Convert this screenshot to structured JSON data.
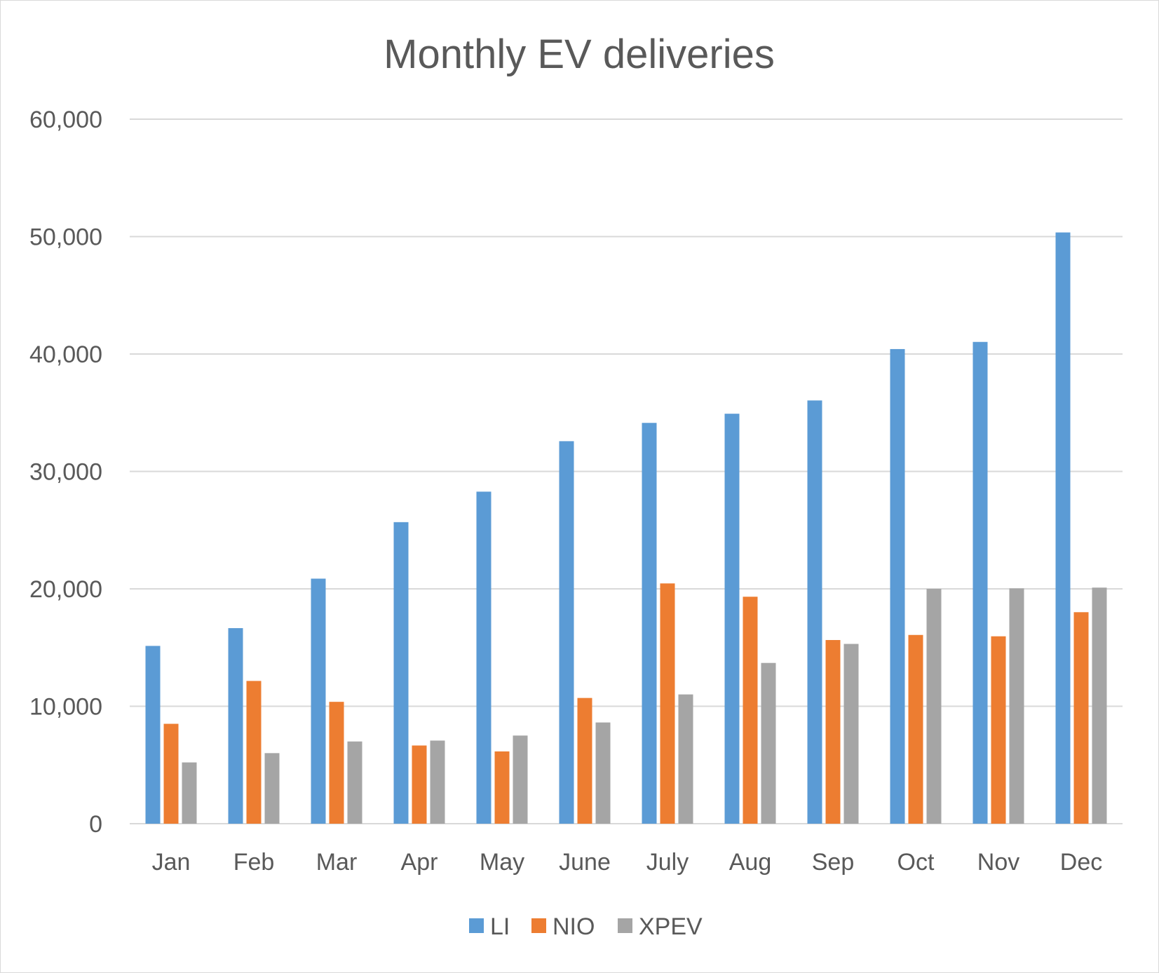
{
  "chart_data": {
    "type": "bar",
    "title": "Monthly EV deliveries",
    "xlabel": "",
    "ylabel": "",
    "categories": [
      "Jan",
      "Feb",
      "Mar",
      "Apr",
      "May",
      "June",
      "July",
      "Aug",
      "Sep",
      "Oct",
      "Nov",
      "Dec"
    ],
    "series": [
      {
        "name": "LI",
        "color": "#5b9bd5",
        "values": [
          15141,
          16654,
          20869,
          25681,
          28277,
          32575,
          34134,
          34914,
          36044,
          40422,
          41030,
          50353
        ]
      },
      {
        "name": "NIO",
        "color": "#ed7d31",
        "values": [
          8506,
          12157,
          10378,
          6658,
          6155,
          10707,
          20462,
          19329,
          15641,
          16074,
          15959,
          18012
        ]
      },
      {
        "name": "XPEV",
        "color": "#a5a5a5",
        "values": [
          5218,
          6010,
          7002,
          7079,
          7506,
          8620,
          11008,
          13690,
          15310,
          20002,
          20041,
          20106
        ]
      }
    ],
    "ylim": [
      0,
      60000
    ],
    "yticks": [
      "0",
      "10,000",
      "20,000",
      "30,000",
      "40,000",
      "50,000",
      "60,000"
    ],
    "grid": true,
    "legend_position": "bottom"
  }
}
